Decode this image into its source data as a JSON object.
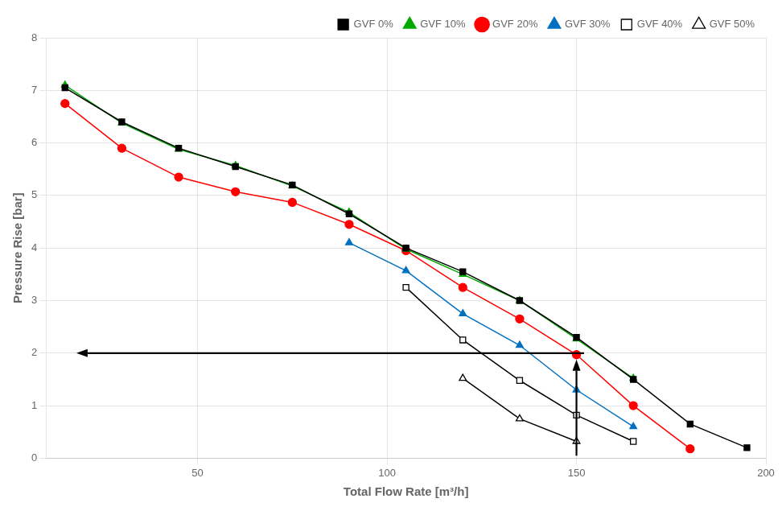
{
  "chart_data": {
    "type": "line",
    "x_label": "Total Flow Rate [m³/h]",
    "y_label": "Pressure Rise [bar]",
    "xlim": [
      10,
      200
    ],
    "ylim": [
      0.0,
      8.0
    ],
    "xticks": [
      50,
      100,
      150,
      200
    ],
    "yticks": [
      0,
      1,
      2,
      3,
      4,
      5,
      6,
      7,
      8
    ],
    "grid": true,
    "legend": "upper right",
    "series": [
      {
        "name": "GVF 0%",
        "color": "#000000",
        "marker": "square",
        "x": [
          15,
          30,
          45,
          60,
          75,
          90,
          105,
          120,
          135,
          150,
          165,
          180,
          195
        ],
        "values": [
          7.05,
          6.4,
          5.9,
          5.55,
          5.2,
          4.65,
          4.0,
          3.55,
          3.0,
          2.3,
          1.5,
          0.65,
          0.2
        ]
      },
      {
        "name": "GVF 10%",
        "color": "#00aa00",
        "marker": "triangle",
        "x": [
          15,
          30,
          45,
          60,
          75,
          90,
          105,
          120,
          135,
          150,
          165
        ],
        "values": [
          7.1,
          6.38,
          5.88,
          5.57,
          5.18,
          4.68,
          3.98,
          3.5,
          3.0,
          2.27,
          1.52
        ]
      },
      {
        "name": "GVF 20%",
        "color": "#ff0000",
        "marker": "circle",
        "x": [
          15,
          30,
          45,
          60,
          75,
          90,
          105,
          120,
          135,
          150,
          165,
          180
        ],
        "values": [
          6.75,
          5.9,
          5.35,
          5.07,
          4.87,
          4.45,
          3.95,
          3.25,
          2.65,
          1.97,
          1.0,
          0.18
        ]
      },
      {
        "name": "GVF 30%",
        "color": "#0070c0",
        "marker": "triangle",
        "x": [
          90,
          105,
          120,
          135,
          150,
          165
        ],
        "values": [
          4.1,
          3.57,
          2.75,
          2.15,
          1.3,
          0.6
        ]
      },
      {
        "name": "GVF 40%",
        "color": "#000000",
        "marker": "open_square",
        "x": [
          105,
          120,
          135,
          150,
          165
        ],
        "values": [
          3.25,
          2.25,
          1.48,
          0.82,
          0.32
        ]
      },
      {
        "name": "GVF 50%",
        "color": "#000000",
        "marker": "open_triangle",
        "x": [
          120,
          135,
          150
        ],
        "values": [
          1.52,
          0.75,
          0.32
        ]
      }
    ],
    "arrows": [
      {
        "x_start": 152,
        "y_start": 2.0,
        "x_end": 18,
        "y_end": 2.0
      },
      {
        "x_start": 150,
        "y_start": 0.05,
        "x_end": 150,
        "y_end": 1.88
      }
    ]
  }
}
